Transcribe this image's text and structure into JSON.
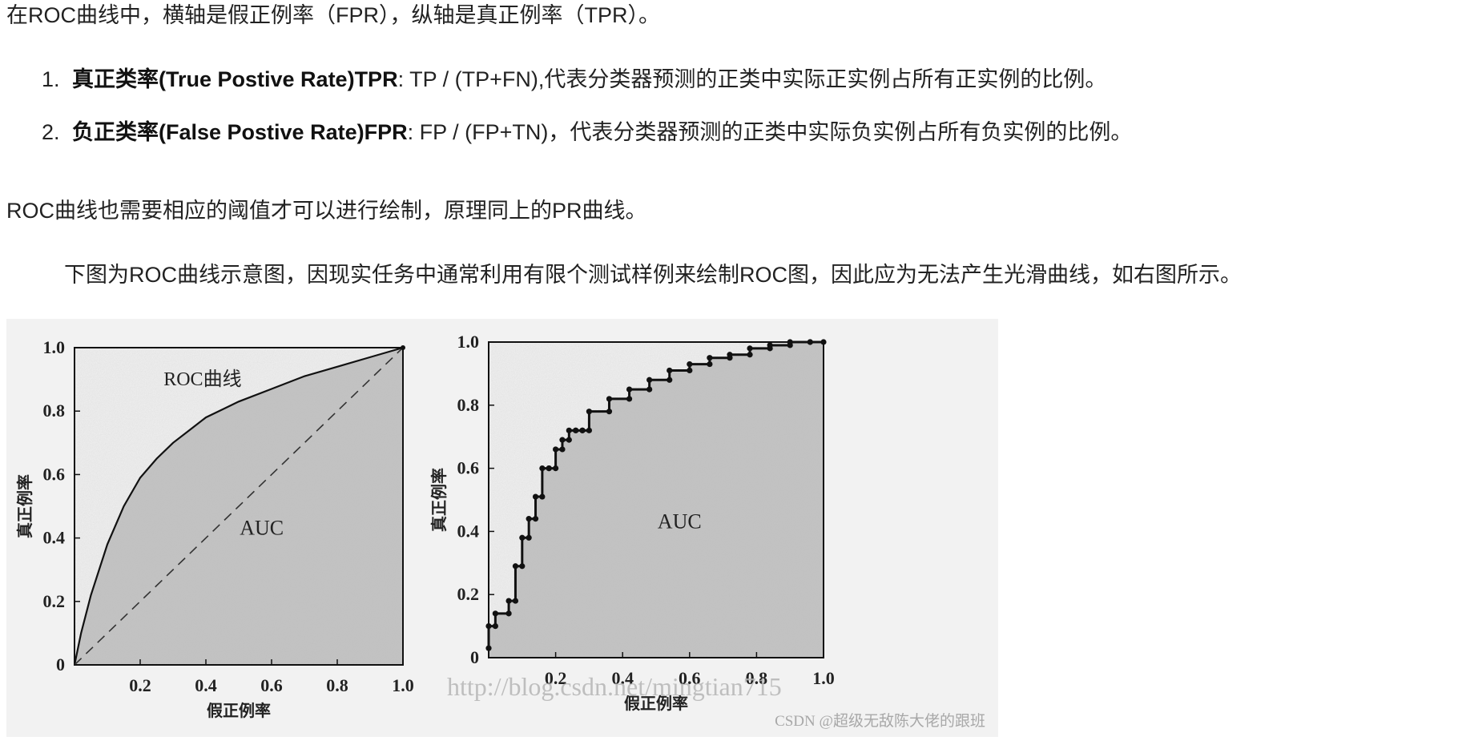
{
  "text": {
    "intro": "在ROC曲线中，横轴是假正例率（FPR），纵轴是真正例率（TPR）。",
    "items": [
      {
        "num": "1.",
        "bold": "真正类率(True Postive Rate)TPR",
        "rest": ": TP / (TP+FN),代表分类器预测的正类中实际正实例占所有正实例的比例。"
      },
      {
        "num": "2.",
        "bold": "负正类率(False Postive Rate)FPR",
        "rest": ": FP / (FP+TN)，代表分类器预测的正类中实际负实例占所有负实例的比例。"
      }
    ],
    "para2": "ROC曲线也需要相应的阈值才可以进行绘制，原理同上的PR曲线。",
    "para3": "下图为ROC曲线示意图，因现实任务中通常利用有限个测试样例来绘制ROC图，因此应为无法产生光滑曲线，如右图所示。"
  },
  "chart_data": [
    {
      "type": "line",
      "curve_label": "ROC曲线",
      "area_label": "AUC",
      "ylabel": "真正例率",
      "xlabel": "假正例率",
      "xlim": [
        0,
        1
      ],
      "ylim": [
        0,
        1
      ],
      "x_ticks": [
        "0.2",
        "0.4",
        "0.6",
        "0.8",
        "1.0"
      ],
      "y_ticks": [
        "0",
        "0.2",
        "0.4",
        "0.6",
        "0.8",
        "1.0"
      ],
      "series": [
        {
          "x": [
            0,
            0.02,
            0.05,
            0.1,
            0.15,
            0.2,
            0.25,
            0.3,
            0.35,
            0.4,
            0.5,
            0.6,
            0.7,
            0.8,
            0.9,
            1.0
          ],
          "y": [
            0,
            0.1,
            0.22,
            0.38,
            0.5,
            0.59,
            0.65,
            0.7,
            0.74,
            0.78,
            0.83,
            0.87,
            0.91,
            0.94,
            0.97,
            1.0
          ]
        },
        {
          "x": [
            0,
            1
          ],
          "y": [
            0,
            1
          ],
          "style": "dashed"
        }
      ]
    },
    {
      "type": "line",
      "area_label": "AUC",
      "ylabel": "真正例率",
      "xlabel": "假正例率",
      "xlim": [
        0,
        1
      ],
      "ylim": [
        0,
        1
      ],
      "x_ticks": [
        "0.2",
        "0.4",
        "0.6",
        "0.8",
        "1.0"
      ],
      "y_ticks": [
        "0",
        "0.2",
        "0.4",
        "0.6",
        "0.8",
        "1.0"
      ],
      "series": [
        {
          "x": [
            0,
            0,
            0.02,
            0.02,
            0.06,
            0.06,
            0.08,
            0.08,
            0.1,
            0.1,
            0.12,
            0.12,
            0.14,
            0.14,
            0.16,
            0.16,
            0.18,
            0.18,
            0.2,
            0.2,
            0.22,
            0.22,
            0.24,
            0.24,
            0.26,
            0.26,
            0.28,
            0.28,
            0.3,
            0.3,
            0.36,
            0.36,
            0.42,
            0.42,
            0.48,
            0.48,
            0.54,
            0.54,
            0.6,
            0.6,
            0.66,
            0.66,
            0.72,
            0.72,
            0.78,
            0.78,
            0.84,
            0.84,
            0.9,
            0.9,
            0.96,
            0.96,
            1.0
          ],
          "y": [
            0.03,
            0.1,
            0.1,
            0.14,
            0.14,
            0.18,
            0.18,
            0.29,
            0.29,
            0.38,
            0.38,
            0.44,
            0.44,
            0.51,
            0.51,
            0.6,
            0.6,
            0.6,
            0.6,
            0.66,
            0.66,
            0.69,
            0.69,
            0.72,
            0.72,
            0.72,
            0.72,
            0.72,
            0.72,
            0.78,
            0.78,
            0.82,
            0.82,
            0.85,
            0.85,
            0.88,
            0.88,
            0.91,
            0.91,
            0.93,
            0.93,
            0.95,
            0.95,
            0.96,
            0.96,
            0.98,
            0.98,
            0.99,
            0.99,
            1.0,
            1.0,
            1.0,
            1.0
          ]
        }
      ]
    }
  ],
  "watermarks": {
    "url": "http://blog.csdn.net/mingtian715",
    "csdn": "CSDN @超级无敌陈大佬的跟班"
  },
  "colors": {
    "fill": "#c4c4c4",
    "line": "#111111",
    "text": "#222222"
  }
}
